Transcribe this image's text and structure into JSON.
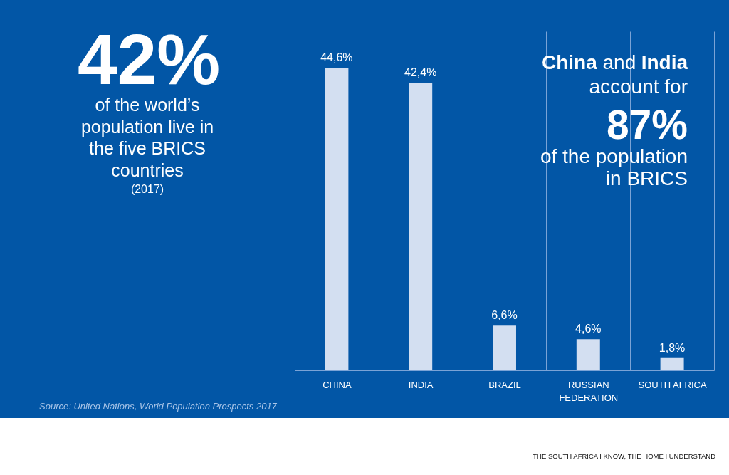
{
  "chart_data": {
    "type": "bar",
    "title": "42%",
    "subtitle": "of the world’s population live in the five BRICS countries",
    "categories": [
      "CHINA",
      "INDIA",
      "BRAZIL",
      "RUSSIAN FEDERATION",
      "SOUTH AFRICA"
    ],
    "values": [
      44.6,
      42.4,
      6.6,
      4.6,
      1.8
    ],
    "value_labels": [
      "44,6%",
      "42,4%",
      "6,6%",
      "4,6%",
      "1,8%"
    ],
    "color": "#d3dff1",
    "ylim": [
      0,
      50
    ],
    "tick_labels": "x",
    "grid": "x",
    "annotations": [
      "(2017)",
      "China",
      "and",
      "India",
      "account for",
      "87%",
      "of the population in BRICS",
      "Source: United Nations, World Population Prospects 2017",
      "THE SOUTH AFRICA I KNOW, THE HOME I UNDERSTAND"
    ]
  }
}
